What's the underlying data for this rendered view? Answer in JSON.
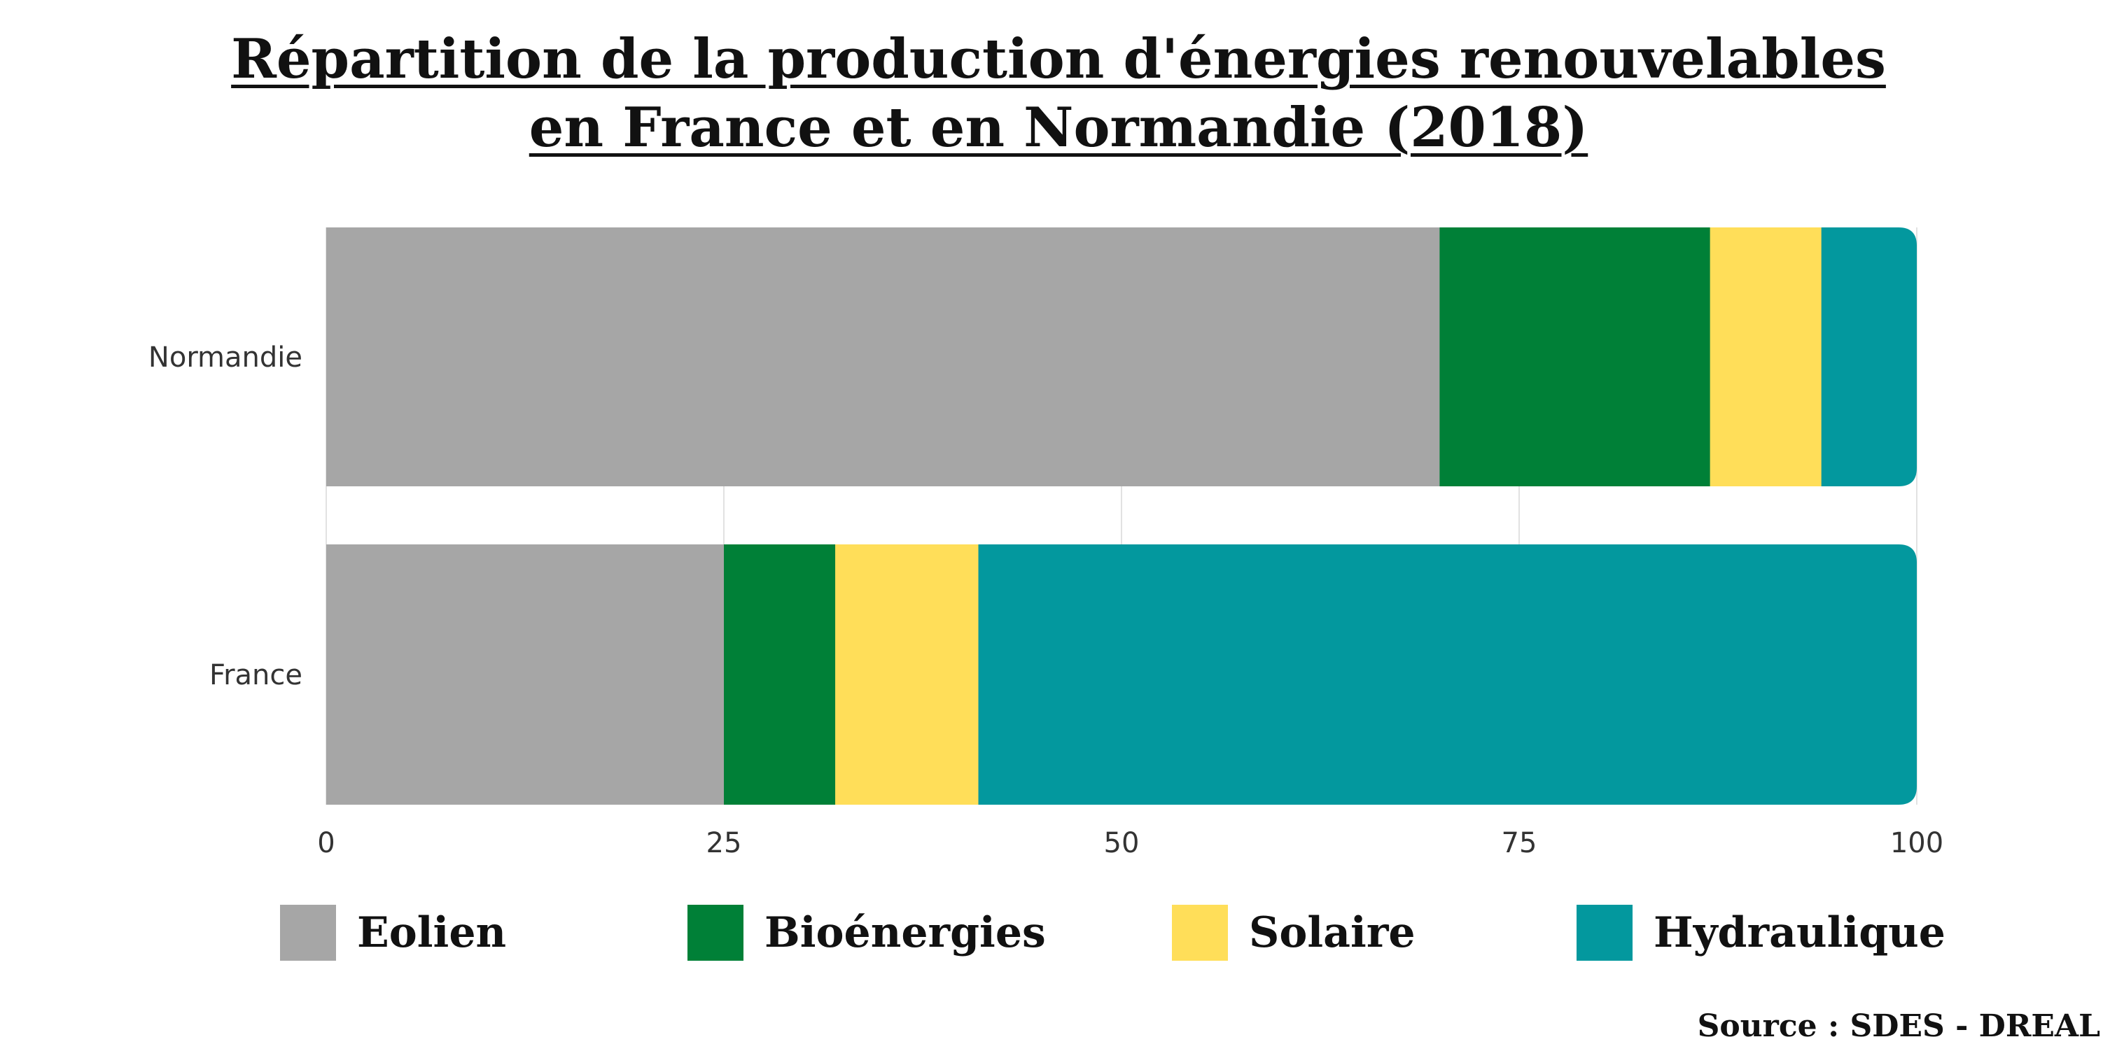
{
  "chart_data": {
    "type": "bar",
    "orientation": "horizontal",
    "stacked": true,
    "title_lines": [
      "Répartition de la production d'énergies renouvelables",
      "en France et en Normandie (2018)"
    ],
    "categories": [
      "Normandie",
      "France"
    ],
    "series": [
      {
        "name": "Eolien",
        "color": "#a6a6a6",
        "values": [
          70,
          25
        ]
      },
      {
        "name": "Bioénergies",
        "color": "#008037",
        "values": [
          17,
          7
        ]
      },
      {
        "name": "Solaire",
        "color": "#ffde59",
        "values": [
          7,
          9
        ]
      },
      {
        "name": "Hydraulique",
        "color": "#03989e",
        "values": [
          6,
          59
        ]
      }
    ],
    "xlim": [
      0,
      100
    ],
    "x_ticks": [
      "0",
      "25",
      "50",
      "75",
      "100"
    ],
    "grid": "vertical",
    "legend_position": "bottom"
  },
  "source": "Source : SDES - DREAL"
}
